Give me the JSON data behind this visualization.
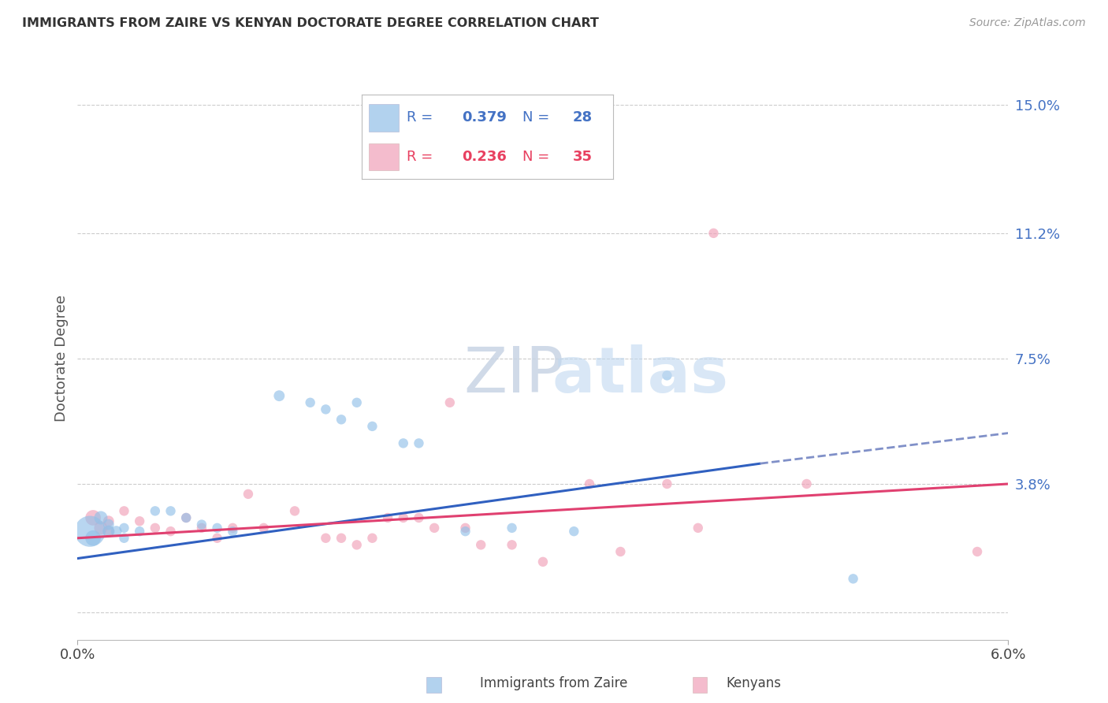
{
  "title": "IMMIGRANTS FROM ZAIRE VS KENYAN DOCTORATE DEGREE CORRELATION CHART",
  "source": "Source: ZipAtlas.com",
  "ylabel": "Doctorate Degree",
  "xlim": [
    0.0,
    0.06
  ],
  "ylim": [
    -0.008,
    0.158
  ],
  "ytick_vals": [
    0.0,
    0.038,
    0.075,
    0.112,
    0.15
  ],
  "ytick_labels": [
    "",
    "3.8%",
    "7.5%",
    "11.2%",
    "15.0%"
  ],
  "xtick_vals": [
    0.0,
    0.06
  ],
  "xtick_labels": [
    "0.0%",
    "6.0%"
  ],
  "color_blue": "#92C0E8",
  "color_pink": "#F0A0B8",
  "line_blue": "#3060C0",
  "line_pink": "#E04070",
  "line_blue_dashed": "#8090C8",
  "blue_points": [
    [
      0.0008,
      0.024
    ],
    [
      0.001,
      0.022
    ],
    [
      0.0015,
      0.028
    ],
    [
      0.002,
      0.024
    ],
    [
      0.002,
      0.026
    ],
    [
      0.0025,
      0.024
    ],
    [
      0.003,
      0.025
    ],
    [
      0.003,
      0.022
    ],
    [
      0.004,
      0.024
    ],
    [
      0.005,
      0.03
    ],
    [
      0.006,
      0.03
    ],
    [
      0.007,
      0.028
    ],
    [
      0.008,
      0.026
    ],
    [
      0.009,
      0.025
    ],
    [
      0.01,
      0.024
    ],
    [
      0.013,
      0.064
    ],
    [
      0.015,
      0.062
    ],
    [
      0.016,
      0.06
    ],
    [
      0.017,
      0.057
    ],
    [
      0.018,
      0.062
    ],
    [
      0.019,
      0.055
    ],
    [
      0.021,
      0.05
    ],
    [
      0.022,
      0.05
    ],
    [
      0.025,
      0.024
    ],
    [
      0.028,
      0.025
    ],
    [
      0.032,
      0.024
    ],
    [
      0.038,
      0.07
    ],
    [
      0.05,
      0.01
    ]
  ],
  "blue_sizes": [
    800,
    200,
    150,
    120,
    100,
    100,
    80,
    80,
    80,
    80,
    80,
    80,
    80,
    80,
    80,
    100,
    80,
    80,
    80,
    80,
    80,
    80,
    80,
    80,
    80,
    80,
    80,
    80
  ],
  "pink_points": [
    [
      0.001,
      0.028
    ],
    [
      0.0015,
      0.025
    ],
    [
      0.002,
      0.027
    ],
    [
      0.002,
      0.024
    ],
    [
      0.003,
      0.03
    ],
    [
      0.004,
      0.027
    ],
    [
      0.005,
      0.025
    ],
    [
      0.006,
      0.024
    ],
    [
      0.007,
      0.028
    ],
    [
      0.008,
      0.025
    ],
    [
      0.009,
      0.022
    ],
    [
      0.01,
      0.025
    ],
    [
      0.011,
      0.035
    ],
    [
      0.012,
      0.025
    ],
    [
      0.014,
      0.03
    ],
    [
      0.016,
      0.022
    ],
    [
      0.017,
      0.022
    ],
    [
      0.018,
      0.02
    ],
    [
      0.019,
      0.022
    ],
    [
      0.02,
      0.028
    ],
    [
      0.021,
      0.028
    ],
    [
      0.022,
      0.028
    ],
    [
      0.023,
      0.025
    ],
    [
      0.024,
      0.062
    ],
    [
      0.025,
      0.025
    ],
    [
      0.026,
      0.02
    ],
    [
      0.028,
      0.02
    ],
    [
      0.03,
      0.015
    ],
    [
      0.033,
      0.038
    ],
    [
      0.035,
      0.018
    ],
    [
      0.038,
      0.038
    ],
    [
      0.04,
      0.025
    ],
    [
      0.041,
      0.112
    ],
    [
      0.047,
      0.038
    ],
    [
      0.058,
      0.018
    ]
  ],
  "pink_sizes": [
    200,
    150,
    100,
    100,
    80,
    80,
    80,
    80,
    80,
    80,
    80,
    80,
    80,
    80,
    80,
    80,
    80,
    80,
    80,
    80,
    80,
    80,
    80,
    80,
    80,
    80,
    80,
    80,
    80,
    80,
    80,
    80,
    80,
    80,
    80
  ],
  "blue_line_solid": {
    "x0": 0.0,
    "y0": 0.016,
    "x1": 0.044,
    "y1": 0.044
  },
  "blue_line_dashed": {
    "x0": 0.044,
    "y0": 0.044,
    "x1": 0.06,
    "y1": 0.053
  },
  "pink_line": {
    "x0": 0.0,
    "y0": 0.022,
    "x1": 0.06,
    "y1": 0.038
  },
  "background_color": "#FFFFFF",
  "grid_color": "#CCCCCC",
  "legend_blue_text": [
    "R = 0.379",
    "N = 28"
  ],
  "legend_pink_text": [
    "R = 0.236",
    "N = 35"
  ]
}
